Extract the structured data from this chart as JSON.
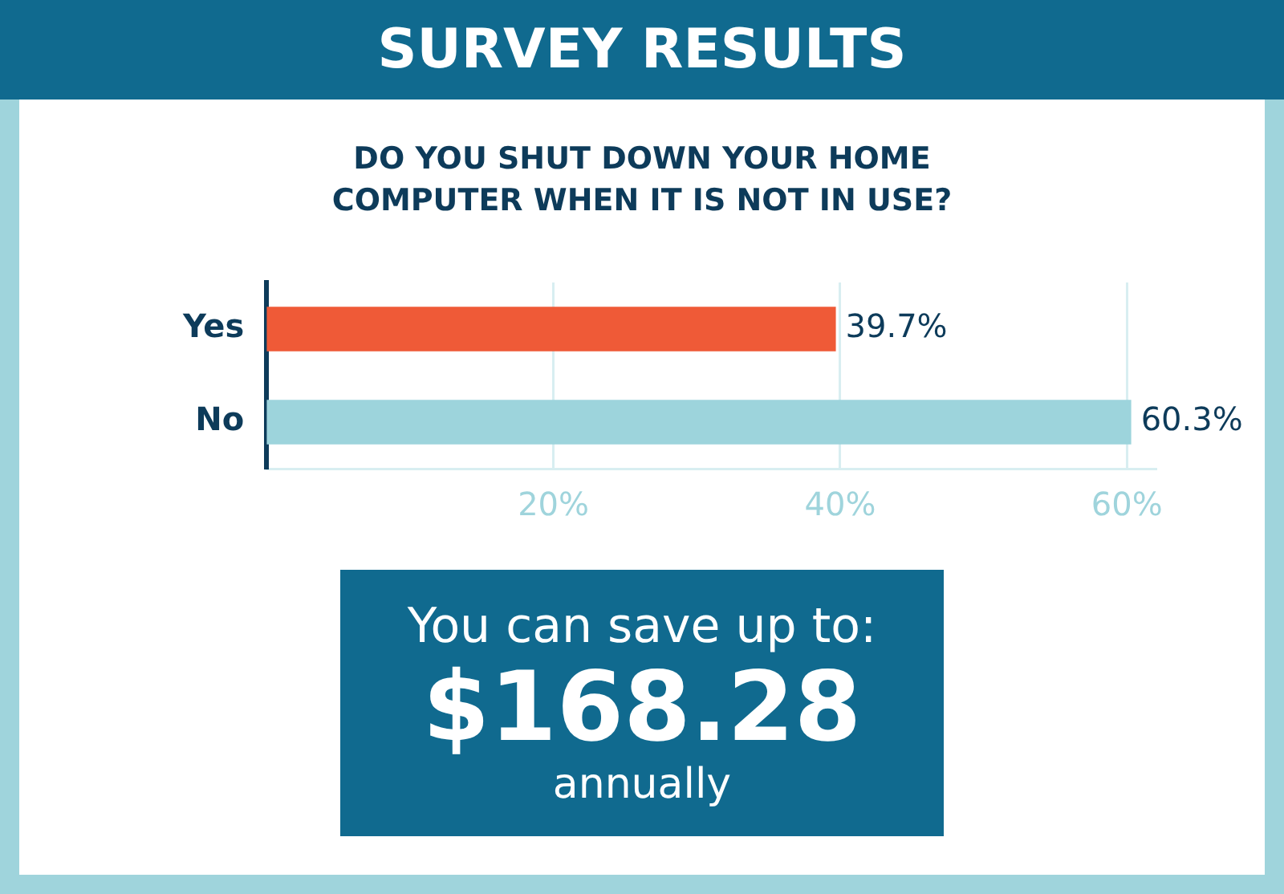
{
  "chart_data": {
    "type": "bar",
    "orientation": "horizontal",
    "title": "SURVEY RESULTS",
    "subtitle": "DO YOU SHUT DOWN YOUR HOME COMPUTER WHEN IT IS NOT IN USE?",
    "categories": [
      "Yes",
      "No"
    ],
    "values": [
      39.7,
      60.3
    ],
    "colors": [
      "#ef5a37",
      "#9dd4dc"
    ],
    "value_labels": [
      "39.7%",
      "60.3%"
    ],
    "xlim": [
      0,
      62
    ],
    "xticks": [
      {
        "value": 20,
        "label": "20%"
      },
      {
        "value": 40,
        "label": "40%"
      },
      {
        "value": 60,
        "label": "60%"
      }
    ],
    "grid": "x",
    "legend": false,
    "annotations": [
      "You can save up to:",
      "$168.28",
      "annually"
    ]
  }
}
